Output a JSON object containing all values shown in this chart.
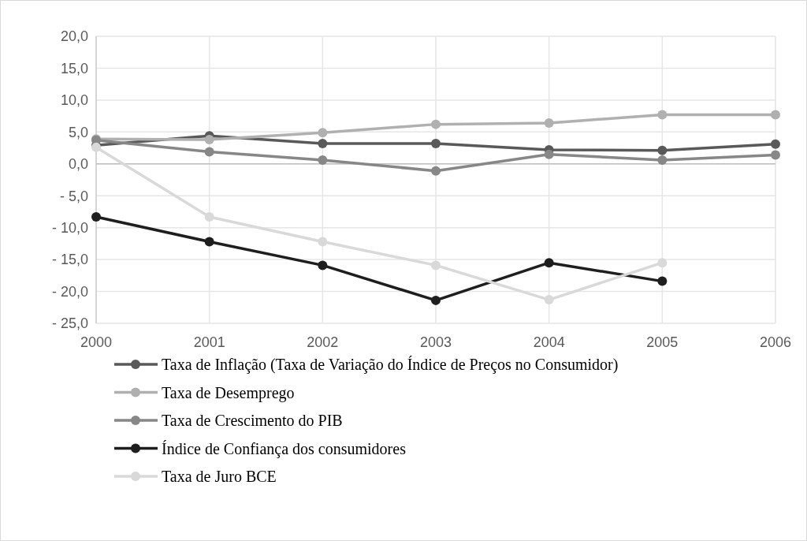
{
  "chart_data": {
    "type": "line",
    "x": [
      2000,
      2001,
      2002,
      2003,
      2004,
      2005,
      2006
    ],
    "xlim": [
      2000,
      2006
    ],
    "xticks": [
      2000,
      2001,
      2002,
      2003,
      2004,
      2005,
      2006
    ],
    "ylim": [
      -25,
      20
    ],
    "yticks": [
      {
        "value": -25,
        "label": "- 25,0"
      },
      {
        "value": -20,
        "label": "- 20,0"
      },
      {
        "value": -15,
        "label": "- 15,0"
      },
      {
        "value": -10,
        "label": "- 10,0"
      },
      {
        "value": -5,
        "label": "- 5,0"
      },
      {
        "value": 0,
        "label": "0,0"
      },
      {
        "value": 5,
        "label": "5,0"
      },
      {
        "value": 10,
        "label": "10,0"
      },
      {
        "value": 15,
        "label": "15,0"
      },
      {
        "value": 20,
        "label": "20,0"
      }
    ],
    "grid": true,
    "legend": "bottom",
    "marker": "circle",
    "line_style": "solid",
    "series": [
      {
        "name": "Taxa de Inflação (Taxa de Variação do Índice de Preços no Consumidor)",
        "color": "#595959",
        "values": [
          2.9,
          4.4,
          3.2,
          3.2,
          2.2,
          2.1,
          3.1
        ]
      },
      {
        "name": "Taxa de Desemprego",
        "color": "#b0b0b0",
        "values": [
          3.9,
          3.8,
          4.9,
          6.2,
          6.4,
          7.7,
          7.7
        ]
      },
      {
        "name": "Taxa de Crescimento do PIB",
        "color": "#878787",
        "values": [
          3.7,
          1.9,
          0.6,
          -1.1,
          1.5,
          0.6,
          1.4
        ]
      },
      {
        "name": "Índice de Confiança dos consumidores",
        "color": "#1e1e1e",
        "values": [
          -8.3,
          -12.2,
          -15.9,
          -21.4,
          -15.5,
          -18.4,
          null
        ]
      },
      {
        "name": "Taxa de Juro BCE",
        "color": "#d9d9d9",
        "values": [
          2.6,
          -8.3,
          -12.2,
          -15.9,
          -21.3,
          -15.5,
          null
        ]
      }
    ]
  }
}
